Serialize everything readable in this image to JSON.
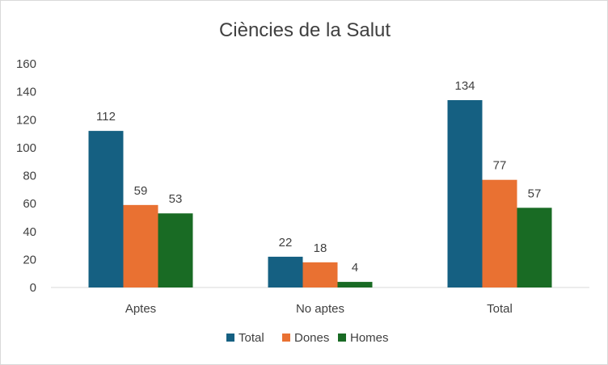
{
  "chart_data": {
    "type": "bar",
    "title": "Ciències de la Salut",
    "categories": [
      "Aptes",
      "No aptes",
      "Total"
    ],
    "series": [
      {
        "name": "Total",
        "values": [
          112,
          22,
          134
        ],
        "color": "#156082"
      },
      {
        "name": "Dones",
        "values": [
          59,
          18,
          77
        ],
        "color": "#E97132"
      },
      {
        "name": "Homes",
        "values": [
          53,
          4,
          57
        ],
        "color": "#196B24"
      }
    ],
    "ylim": [
      0,
      160
    ],
    "yticks": [
      0,
      20,
      40,
      60,
      80,
      100,
      120,
      140,
      160
    ],
    "grid": false,
    "legend": "bottom",
    "xlabel": "",
    "ylabel": ""
  }
}
